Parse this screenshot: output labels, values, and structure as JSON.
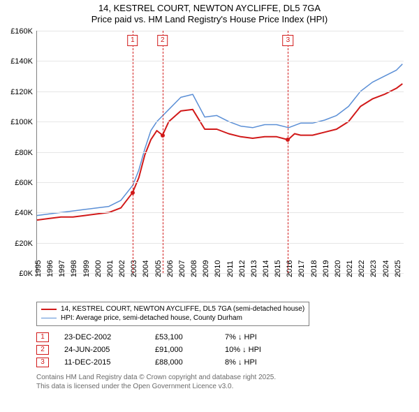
{
  "title": {
    "line1": "14, KESTREL COURT, NEWTON AYCLIFFE, DL5 7GA",
    "line2": "Price paid vs. HM Land Registry's House Price Index (HPI)"
  },
  "chart": {
    "type": "line",
    "background_color": "#ffffff",
    "grid_color": "#e6e6e6",
    "axis_color": "#808080",
    "x": {
      "min": 1995,
      "max": 2025.6,
      "tick_step": 1,
      "tick_rotation": -90,
      "label_fontsize": 11,
      "ticks": [
        1995,
        1996,
        1997,
        1998,
        1999,
        2000,
        2001,
        2002,
        2003,
        2004,
        2005,
        2006,
        2007,
        2008,
        2009,
        2010,
        2011,
        2012,
        2013,
        2014,
        2015,
        2016,
        2017,
        2018,
        2019,
        2020,
        2021,
        2022,
        2023,
        2024,
        2025
      ]
    },
    "y": {
      "min": 0,
      "max": 160000,
      "tick_step": 20000,
      "label_fontsize": 11,
      "tick_labels": [
        "£0K",
        "£20K",
        "£40K",
        "£60K",
        "£80K",
        "£100K",
        "£120K",
        "£140K",
        "£160K"
      ]
    },
    "series": [
      {
        "id": "price_paid",
        "label": "14, KESTREL COURT, NEWTON AYCLIFFE, DL5 7GA (semi-detached house)",
        "color": "#d11919",
        "line_width": 2,
        "points": [
          [
            1995.0,
            35000
          ],
          [
            1996.0,
            36000
          ],
          [
            1997.0,
            37000
          ],
          [
            1998.0,
            37000
          ],
          [
            1999.0,
            38000
          ],
          [
            2000.0,
            39000
          ],
          [
            2001.0,
            40000
          ],
          [
            2002.0,
            43000
          ],
          [
            2002.98,
            53100
          ],
          [
            2003.5,
            63000
          ],
          [
            2004.0,
            78000
          ],
          [
            2004.5,
            88000
          ],
          [
            2005.0,
            94000
          ],
          [
            2005.48,
            91000
          ],
          [
            2006.0,
            100000
          ],
          [
            2007.0,
            107000
          ],
          [
            2008.0,
            108000
          ],
          [
            2009.0,
            95000
          ],
          [
            2010.0,
            95000
          ],
          [
            2011.0,
            92000
          ],
          [
            2012.0,
            90000
          ],
          [
            2013.0,
            89000
          ],
          [
            2014.0,
            90000
          ],
          [
            2015.0,
            90000
          ],
          [
            2015.95,
            88000
          ],
          [
            2016.5,
            92000
          ],
          [
            2017.0,
            91000
          ],
          [
            2018.0,
            91000
          ],
          [
            2019.0,
            93000
          ],
          [
            2020.0,
            95000
          ],
          [
            2021.0,
            100000
          ],
          [
            2022.0,
            110000
          ],
          [
            2023.0,
            115000
          ],
          [
            2024.0,
            118000
          ],
          [
            2025.0,
            122000
          ],
          [
            2025.5,
            125000
          ]
        ]
      },
      {
        "id": "hpi",
        "label": "HPI: Average price, semi-detached house, County Durham",
        "color": "#5b8fd6",
        "line_width": 1.5,
        "points": [
          [
            1995.0,
            38000
          ],
          [
            1996.0,
            39000
          ],
          [
            1997.0,
            40000
          ],
          [
            1998.0,
            41000
          ],
          [
            1999.0,
            42000
          ],
          [
            2000.0,
            43000
          ],
          [
            2001.0,
            44000
          ],
          [
            2002.0,
            48000
          ],
          [
            2003.0,
            58000
          ],
          [
            2003.5,
            68000
          ],
          [
            2004.0,
            82000
          ],
          [
            2004.5,
            94000
          ],
          [
            2005.0,
            100000
          ],
          [
            2006.0,
            108000
          ],
          [
            2007.0,
            116000
          ],
          [
            2008.0,
            118000
          ],
          [
            2009.0,
            103000
          ],
          [
            2010.0,
            104000
          ],
          [
            2011.0,
            100000
          ],
          [
            2012.0,
            97000
          ],
          [
            2013.0,
            96000
          ],
          [
            2014.0,
            98000
          ],
          [
            2015.0,
            98000
          ],
          [
            2016.0,
            96000
          ],
          [
            2017.0,
            99000
          ],
          [
            2018.0,
            99000
          ],
          [
            2019.0,
            101000
          ],
          [
            2020.0,
            104000
          ],
          [
            2021.0,
            110000
          ],
          [
            2022.0,
            120000
          ],
          [
            2023.0,
            126000
          ],
          [
            2024.0,
            130000
          ],
          [
            2025.0,
            134000
          ],
          [
            2025.5,
            138000
          ]
        ]
      }
    ],
    "event_lines": {
      "color": "#d11919",
      "dash": "4,3",
      "items": [
        {
          "n": "1",
          "x": 2002.98
        },
        {
          "n": "2",
          "x": 2005.48
        },
        {
          "n": "3",
          "x": 2015.95
        }
      ]
    },
    "sale_markers": {
      "color": "#d11919",
      "radius": 3,
      "items": [
        {
          "x": 2002.98,
          "y": 53100
        },
        {
          "x": 2005.48,
          "y": 91000
        },
        {
          "x": 2015.95,
          "y": 88000
        }
      ]
    }
  },
  "legend": {
    "border_color": "#808080",
    "fontsize": 10
  },
  "events_table": {
    "arrow": "↓",
    "suffix": "HPI",
    "rows": [
      {
        "n": "1",
        "date": "23-DEC-2002",
        "price": "£53,100",
        "delta": "7%"
      },
      {
        "n": "2",
        "date": "24-JUN-2005",
        "price": "£91,000",
        "delta": "10%"
      },
      {
        "n": "3",
        "date": "11-DEC-2015",
        "price": "£88,000",
        "delta": "8%"
      }
    ]
  },
  "attribution": {
    "line1": "Contains HM Land Registry data © Crown copyright and database right 2025.",
    "line2": "This data is licensed under the Open Government Licence v3.0.",
    "color": "#6a6a6a"
  }
}
